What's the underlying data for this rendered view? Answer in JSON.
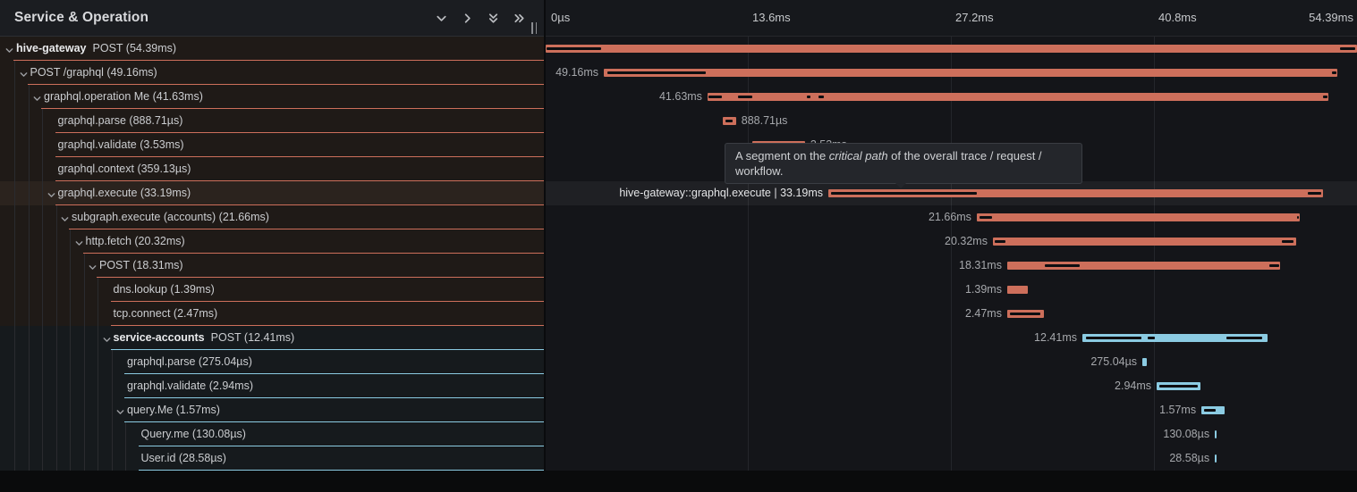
{
  "panel": {
    "title": "Service & Operation",
    "resize_handle": "||",
    "icons": [
      "chevron-down-icon",
      "chevron-right-icon",
      "double-chevron-down-icon",
      "double-chevron-right-icon"
    ]
  },
  "axis": {
    "ticks": [
      "0µs",
      "13.6ms",
      "27.2ms",
      "40.8ms",
      "54.39ms"
    ],
    "max_ms": 54.39
  },
  "colors": {
    "salmon": "#cd6f5b",
    "blue": "#8bcbe2",
    "critical_mark": "#0d0e11"
  },
  "tooltip": {
    "pre": "A segment on the ",
    "italic": "critical path",
    "post": " of the overall trace / request /",
    "line2": "workflow."
  },
  "spans": [
    {
      "level": 0,
      "chevron": true,
      "bold": "hive-gateway",
      "text": "POST (54.39ms)",
      "tint": "warm",
      "color": "salmon",
      "start_ms": 0,
      "dur_ms": 54.39,
      "bar_label": "",
      "label_side": "none",
      "bright": false,
      "hover": false,
      "marks": [
        [
          0,
          3.78
        ],
        [
          53.19,
          54.33
        ]
      ]
    },
    {
      "level": 1,
      "chevron": true,
      "bold": "",
      "text": "POST /graphql (49.16ms)",
      "tint": "warm",
      "color": "salmon",
      "start_ms": 3.9,
      "dur_ms": 49.16,
      "bar_label": "49.16ms",
      "label_side": "left",
      "bright": false,
      "hover": false,
      "marks": [
        [
          4.08,
          10.79
        ],
        [
          52.65,
          53.06
        ]
      ]
    },
    {
      "level": 2,
      "chevron": true,
      "bold": "",
      "text": "graphql.operation Me (41.63ms)",
      "tint": "warm",
      "color": "salmon",
      "start_ms": 10.85,
      "dur_ms": 41.63,
      "bar_label": "41.63ms",
      "label_side": "left",
      "bright": false,
      "hover": false,
      "marks": [
        [
          10.85,
          11.87
        ],
        [
          12.83,
          13.91
        ],
        [
          17.45,
          17.81
        ],
        [
          18.23,
          18.72
        ],
        [
          52.05,
          52.48
        ]
      ]
    },
    {
      "level": 3,
      "chevron": false,
      "bold": "",
      "text": "graphql.parse (888.71µs)",
      "tint": "warm",
      "color": "salmon",
      "start_ms": 11.87,
      "dur_ms": 0.88871,
      "bar_label": "888.71µs",
      "label_side": "right",
      "bright": false,
      "hover": false,
      "marks": [
        [
          11.99,
          12.62
        ]
      ]
    },
    {
      "level": 3,
      "chevron": false,
      "bold": "",
      "text": "graphql.validate (3.53ms)",
      "tint": "warm",
      "color": "salmon",
      "start_ms": 13.85,
      "dur_ms": 3.53,
      "bar_label": "3.53ms",
      "label_side": "right",
      "bright": false,
      "hover": false,
      "marks": []
    },
    {
      "level": 3,
      "chevron": false,
      "bold": "",
      "text": "graphql.context (359.13µs)",
      "tint": "warm",
      "color": "salmon",
      "start_ms": 17.39,
      "dur_ms": 0.35913,
      "bar_label": "359.13µs",
      "label_side": "right",
      "bright": false,
      "hover": false,
      "marks": []
    },
    {
      "level": 3,
      "chevron": true,
      "bold": "",
      "text": "graphql.execute (33.19ms)",
      "tint": "warm",
      "color": "salmon",
      "start_ms": 18.95,
      "dur_ms": 33.19,
      "bar_label": "hive-gateway::graphql.execute | 33.19ms",
      "label_side": "left",
      "bright": true,
      "hover": true,
      "marks": [
        [
          19.07,
          28.96
        ],
        [
          51.03,
          52.05
        ]
      ]
    },
    {
      "level": 4,
      "chevron": true,
      "bold": "",
      "text": "subgraph.execute (accounts) (21.66ms)",
      "tint": "warm",
      "color": "salmon",
      "start_ms": 28.9,
      "dur_ms": 21.66,
      "bar_label": "21.66ms",
      "label_side": "left",
      "bright": false,
      "hover": false,
      "marks": [
        [
          29.02,
          29.98
        ],
        [
          50.31,
          50.56
        ]
      ]
    },
    {
      "level": 5,
      "chevron": true,
      "bold": "",
      "text": "http.fetch (20.32ms)",
      "tint": "warm",
      "color": "salmon",
      "start_ms": 29.98,
      "dur_ms": 20.32,
      "bar_label": "20.32ms",
      "label_side": "left",
      "bright": false,
      "hover": false,
      "marks": [
        [
          30.04,
          30.88
        ],
        [
          49.29,
          50.19
        ]
      ]
    },
    {
      "level": 6,
      "chevron": true,
      "bold": "",
      "text": "POST (18.31ms)",
      "tint": "warm",
      "color": "salmon",
      "start_ms": 30.94,
      "dur_ms": 18.31,
      "bar_label": "18.31ms",
      "label_side": "left",
      "bright": false,
      "hover": false,
      "marks": [
        [
          33.4,
          35.86
        ],
        [
          48.45,
          49.23
        ]
      ]
    },
    {
      "level": 7,
      "chevron": false,
      "bold": "",
      "text": "dns.lookup (1.39ms)",
      "tint": "warm",
      "color": "salmon",
      "start_ms": 30.94,
      "dur_ms": 1.39,
      "bar_label": "1.39ms",
      "label_side": "left",
      "bright": false,
      "hover": false,
      "marks": []
    },
    {
      "level": 7,
      "chevron": false,
      "bold": "",
      "text": "tcp.connect (2.47ms)",
      "tint": "warm",
      "color": "salmon",
      "start_ms": 30.94,
      "dur_ms": 2.47,
      "bar_label": "2.47ms",
      "label_side": "left",
      "bright": false,
      "hover": false,
      "marks": [
        [
          31.06,
          33.22
        ]
      ]
    },
    {
      "level": 7,
      "chevron": true,
      "bold": "service-accounts",
      "text": "POST (12.41ms)",
      "tint": "cool",
      "color": "blue",
      "start_ms": 35.98,
      "dur_ms": 12.41,
      "bar_label": "12.41ms",
      "label_side": "left",
      "bright": false,
      "hover": false,
      "marks": [
        [
          36.16,
          40.0
        ],
        [
          40.3,
          40.9
        ],
        [
          45.57,
          48.12
        ]
      ]
    },
    {
      "level": 8,
      "chevron": false,
      "bold": "",
      "text": "graphql.parse (275.04µs)",
      "tint": "cool",
      "color": "blue",
      "start_ms": 40.0,
      "dur_ms": 0.27504,
      "bar_label": "275.04µs",
      "label_side": "left",
      "bright": false,
      "hover": false,
      "marks": []
    },
    {
      "level": 8,
      "chevron": false,
      "bold": "",
      "text": "graphql.validate (2.94ms)",
      "tint": "cool",
      "color": "blue",
      "start_ms": 40.96,
      "dur_ms": 2.94,
      "bar_label": "2.94ms",
      "label_side": "left",
      "bright": false,
      "hover": false,
      "marks": [
        [
          41.08,
          43.78
        ]
      ]
    },
    {
      "level": 8,
      "chevron": true,
      "bold": "",
      "text": "query.Me (1.57ms)",
      "tint": "cool",
      "color": "blue",
      "start_ms": 43.96,
      "dur_ms": 1.57,
      "bar_label": "1.57ms",
      "label_side": "left",
      "bright": false,
      "hover": false,
      "marks": [
        [
          44.08,
          44.98
        ]
      ]
    },
    {
      "level": 9,
      "chevron": false,
      "bold": "",
      "text": "Query.me (130.08µs)",
      "tint": "cool",
      "color": "blue",
      "start_ms": 44.86,
      "dur_ms": 0.13008,
      "bar_label": "130.08µs",
      "label_side": "left",
      "bright": false,
      "hover": false,
      "marks": []
    },
    {
      "level": 9,
      "chevron": false,
      "bold": "",
      "text": "User.id (28.58µs)",
      "tint": "cool",
      "color": "blue",
      "start_ms": 44.86,
      "dur_ms": 0.02858,
      "bar_label": "28.58µs",
      "label_side": "left",
      "bright": false,
      "hover": false,
      "marks": []
    }
  ]
}
